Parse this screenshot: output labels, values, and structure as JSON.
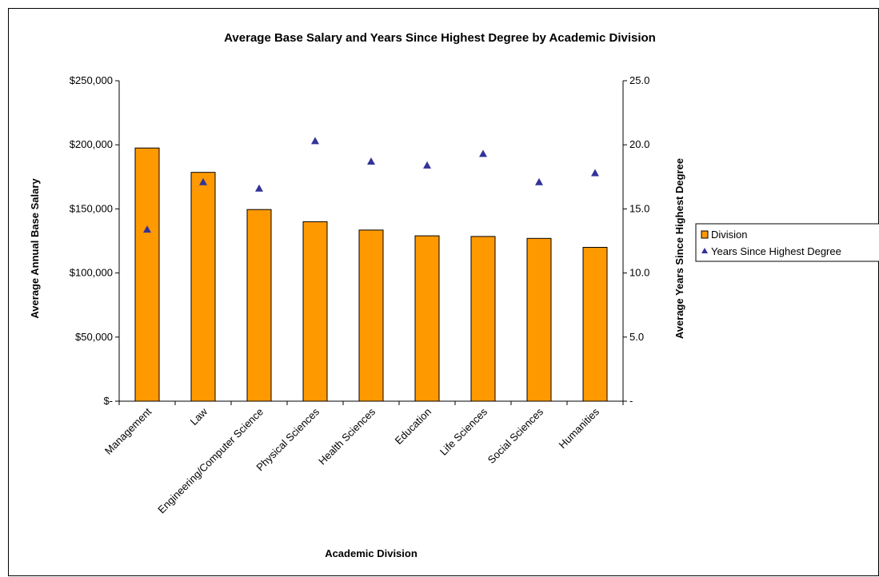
{
  "chart_data": {
    "type": "bar",
    "title": "Average Base Salary and Years Since Highest Degree by Academic Division",
    "xlabel": "Academic Division",
    "ylabel": "Average Annual Base Salary",
    "y2label": "Average Years Since Highest Degree",
    "categories": [
      "Management",
      "Law",
      "Engineering/Computer Science",
      "Physical Sciences",
      "Health Sciences",
      "Education",
      "Life Sciences",
      "Social Sciences",
      "Humanities"
    ],
    "series": [
      {
        "name": "Division",
        "type": "bar",
        "axis": "left",
        "color": "#ff9900",
        "values": [
          197500,
          178500,
          149500,
          140000,
          133500,
          129000,
          128500,
          127000,
          120000
        ]
      },
      {
        "name": "Years Since Highest Degree",
        "type": "scatter",
        "axis": "right",
        "marker": "triangle",
        "color": "#333399",
        "values": [
          13.4,
          17.1,
          16.6,
          20.3,
          18.7,
          18.4,
          19.3,
          17.1,
          17.8
        ]
      }
    ],
    "ylim": [
      0,
      250000
    ],
    "y2lim": [
      0,
      25
    ],
    "yticks": [
      0,
      50000,
      100000,
      150000,
      200000,
      250000
    ],
    "ytick_labels": [
      "$-",
      "$50,000",
      "$100,000",
      "$150,000",
      "$200,000",
      "$250,000"
    ],
    "y2ticks": [
      0,
      5,
      10,
      15,
      20,
      25
    ],
    "y2tick_labels": [
      "-",
      "5.0",
      "10.0",
      "15.0",
      "20.0",
      "25.0"
    ],
    "grid": false,
    "legend": "right"
  }
}
